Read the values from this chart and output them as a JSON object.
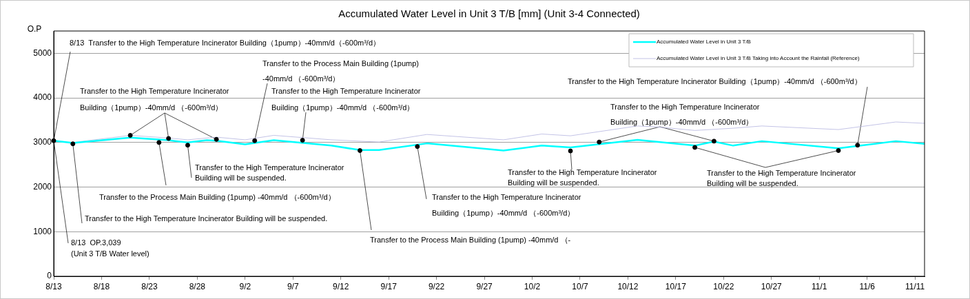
{
  "chart_data": {
    "type": "line",
    "title": "Accumulated Water Level in Unit 3 T/B [mm] (Unit 3-4 Connected)",
    "ylabel": "O.P",
    "xlim": [
      "--08-13",
      "--11-12"
    ],
    "xticks": [
      {
        "value": "--08-13",
        "label": "8/13"
      },
      {
        "value": "--08-18",
        "label": "8/18"
      },
      {
        "value": "--08-23",
        "label": "8/23"
      },
      {
        "value": "--08-28",
        "label": "8/28"
      },
      {
        "value": "--09-02",
        "label": "9/2"
      },
      {
        "value": "--09-07",
        "label": "9/7"
      },
      {
        "value": "--09-12",
        "label": "9/12"
      },
      {
        "value": "--09-17",
        "label": "9/17"
      },
      {
        "value": "--09-22",
        "label": "9/22"
      },
      {
        "value": "--09-27",
        "label": "9/27"
      },
      {
        "value": "--10-02",
        "label": "10/2"
      },
      {
        "value": "--10-07",
        "label": "10/7"
      },
      {
        "value": "--10-12",
        "label": "10/12"
      },
      {
        "value": "--10-17",
        "label": "10/17"
      },
      {
        "value": "--10-22",
        "label": "10/22"
      },
      {
        "value": "--10-27",
        "label": "10/27"
      },
      {
        "value": "--11-01",
        "label": "11/1"
      },
      {
        "value": "--11-06",
        "label": "11/6"
      },
      {
        "value": "--11-11",
        "label": "11/11"
      }
    ],
    "ylim": [
      0,
      5500
    ],
    "yticks": [
      0,
      1000,
      2000,
      3000,
      4000,
      5000
    ],
    "grid": "y",
    "legend": "top right",
    "marker": "none",
    "line_style": "solid",
    "series": [
      {
        "name": "Accumulated Water Level in Unit 3 T/B",
        "color": "#00ffff",
        "x": [
          "--08-13",
          "--08-15",
          "--08-21",
          "--08-25",
          "--08-27",
          "--08-29",
          "--08-30",
          "--09-02",
          "--09-05",
          "--09-11",
          "--09-14",
          "--09-16",
          "--09-21",
          "--09-29",
          "--10-03",
          "--10-06",
          "--10-13",
          "--10-19",
          "--10-21",
          "--10-23",
          "--10-26",
          "--11-03",
          "--11-09",
          "--11-12"
        ],
        "values": [
          3040,
          2990,
          3110,
          3050,
          3000,
          3050,
          3040,
          2960,
          3050,
          2930,
          2830,
          2830,
          2980,
          2820,
          2930,
          2890,
          3060,
          2930,
          3020,
          2930,
          3030,
          2870,
          3030,
          2970
        ]
      },
      {
        "name": "Accumulated Water Level in Unit 3 T/B Taking into Account the Rainfall (Reference)",
        "color": "#b4b4e0",
        "x": [
          "--08-13",
          "--08-15",
          "--08-21",
          "--08-25",
          "--08-27",
          "--08-30",
          "--09-02",
          "--09-05",
          "--09-11",
          "--09-16",
          "--09-21",
          "--09-29",
          "--10-03",
          "--10-06",
          "--10-13",
          "--10-15",
          "--10-19",
          "--10-23",
          "--10-26",
          "--11-03",
          "--11-09",
          "--11-12"
        ],
        "values": [
          3040,
          3000,
          3160,
          3100,
          3060,
          3120,
          3060,
          3160,
          3060,
          3010,
          3180,
          3060,
          3190,
          3150,
          3370,
          3350,
          3270,
          3320,
          3370,
          3290,
          3460,
          3430
        ]
      },
      {
        "type": "scatter",
        "marker": "circle",
        "color": "#000000",
        "x": [
          "--08-13",
          "--08-15",
          "--08-21",
          "--08-25",
          "--08-30",
          "--08-24",
          "--08-27",
          "--09-03",
          "--09-08",
          "--09-14",
          "--09-20",
          "--10-06",
          "--10-09",
          "--10-21",
          "--10-19",
          "--11-03",
          "--11-05"
        ],
        "values": [
          3040,
          2970,
          3160,
          3090,
          3070,
          3000,
          2940,
          3040,
          3050,
          2820,
          2910,
          2810,
          3010,
          3030,
          2890,
          2820,
          2940
        ]
      }
    ],
    "annotations": [
      {
        "text": "8/13  Transfer to the High Temperature Incinerator Building（1pump）-40mm/d（-600m³/d）",
        "x": "--08-13",
        "y": 3040
      },
      {
        "text": "Transfer to the Process Main Building (1pump)\n-40mm/d （-600m³/d）",
        "x": "--09-03",
        "y": 3040
      },
      {
        "text": "Transfer to the High Temperature Incinerator\nBuilding（1pump）-40mm/d （-600m³/d）",
        "x": "--08-21",
        "y": 3160
      },
      {
        "text": "Transfer to the High Temperature Incinerator\nBuilding（1pump）-40mm/d （-600m³/d）",
        "x": "--09-08",
        "y": 3050
      },
      {
        "text": "Transfer to the High Temperature Incinerator Building（1pump）-40mm/d （-600m³/d）",
        "x": "--11-05",
        "y": 2940
      },
      {
        "text": "Transfer to the High Temperature Incinerator\nBuilding（1pump）-40mm/d （-600m³/d）",
        "x": "--10-09",
        "y": 3010
      },
      {
        "text": "Transfer to the High Temperature Incinerator\nBuilding will be suspended.",
        "x": "--08-27",
        "y": 2940
      },
      {
        "text": "Transfer to the Process Main Building (1pump) -40mm/d （-600m³/d）",
        "x": "--08-24",
        "y": 3000
      },
      {
        "text": "Transfer to the High Temperature Incinerator Building will be suspended.",
        "x": "--08-15",
        "y": 2970
      },
      {
        "text": "8/13  OP.3,039\n(Unit 3 T/B Water level)",
        "x": "--08-13",
        "y": 3040
      },
      {
        "text": "Transfer to the High Temperature Incinerator\nBuilding（1pump）-40mm/d （-600m³/d）",
        "x": "--09-20",
        "y": 2910
      },
      {
        "text": "Transfer to the Process Main Building (1pump) -40mm/d （-",
        "x": "--09-14",
        "y": 2820
      },
      {
        "text": "Transfer to the High Temperature Incinerator\nBuilding will be suspended.",
        "x": "--10-06",
        "y": 2810
      },
      {
        "text": "Transfer to the High Temperature Incinerator\nBuilding will be suspended.",
        "x": "--10-19",
        "y": 2890
      }
    ]
  }
}
